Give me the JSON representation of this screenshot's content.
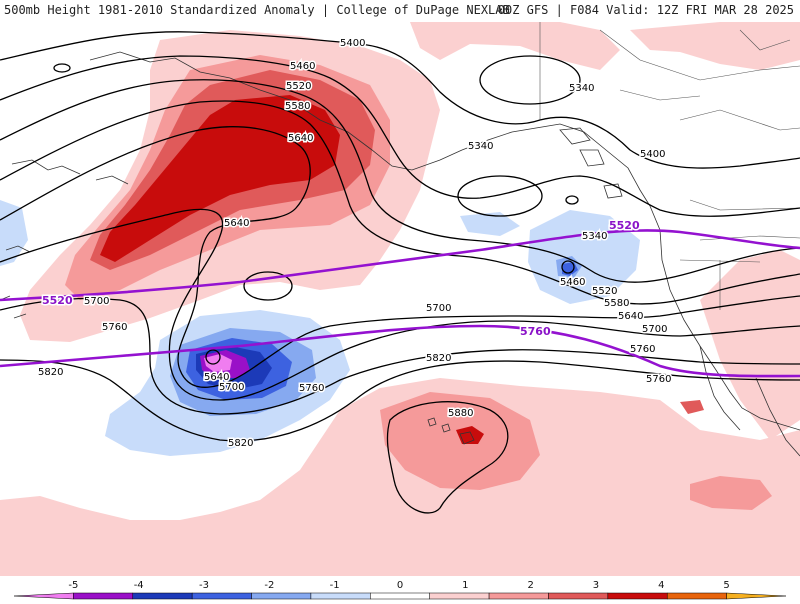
{
  "header": {
    "title": "500mb Height 1981-2010 Standardized Anomaly | College of DuPage NEXLAB",
    "valid": "00Z GFS | F084 Valid: 12Z FRI MAR 28 2025"
  },
  "colorbar": {
    "ticks": [
      "-5",
      "-4",
      "-3",
      "-2",
      "-1",
      "0",
      "1",
      "2",
      "3",
      "4",
      "5"
    ],
    "colors": [
      "#f07df0",
      "#9a10c8",
      "#1c3ab8",
      "#3d62e0",
      "#86a9f0",
      "#c8dcfa",
      "#ffffff",
      "#fbd0d0",
      "#f59a9a",
      "#e05a5a",
      "#c80c0c",
      "#e8640c",
      "#f6b020"
    ]
  },
  "height_labels": {
    "l5400a": "5400",
    "l5460a": "5460",
    "l5520a": "5520",
    "l5580a": "5580",
    "l5640a": "5640",
    "l5340a": "5340",
    "l5340b": "5340",
    "l5400b": "5400",
    "l5340c": "5340",
    "l5460b": "5460",
    "l5520b": "5520",
    "l5580b": "5580",
    "l5640b": "5640",
    "l5640c": "5640",
    "l5700a": "5700",
    "l5760a": "5760",
    "l5700b": "5700",
    "l5760b": "5760",
    "l5700c": "5700",
    "l5820a": "5820",
    "l5760c": "5760",
    "l5820b": "5820",
    "l5640d": "5640",
    "l5700d": "5700",
    "l5760d": "5760",
    "l5820c": "5820",
    "l5880": "5880"
  },
  "highlight_labels": {
    "p5520a": "5520",
    "p5520b": "5520",
    "p5760": "5760"
  }
}
